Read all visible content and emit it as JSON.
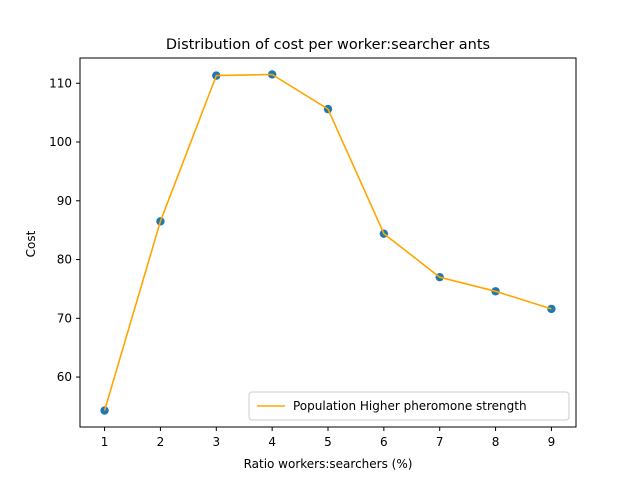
{
  "chart_data": {
    "type": "line",
    "title": "Distribution of cost per worker:searcher ants",
    "xlabel": "Ratio workers:searchers (%)",
    "ylabel": "Cost",
    "x": [
      1,
      2,
      3,
      4,
      5,
      6,
      7,
      8,
      9
    ],
    "xlim": [
      0.56,
      9.44
    ],
    "ylim": [
      51.5,
      114.3
    ],
    "xticks": [
      1,
      2,
      3,
      4,
      5,
      6,
      7,
      8,
      9
    ],
    "yticks": [
      60,
      70,
      80,
      90,
      100,
      110
    ],
    "grid": false,
    "legend_position": "bottom-right",
    "series": [
      {
        "name": "Population Higher pheromone strength",
        "values": [
          54.3,
          86.5,
          111.3,
          111.5,
          105.6,
          84.4,
          77.0,
          74.6,
          71.6
        ],
        "line_color": "#ffa500",
        "marker_color": "#1f77b4"
      }
    ]
  }
}
